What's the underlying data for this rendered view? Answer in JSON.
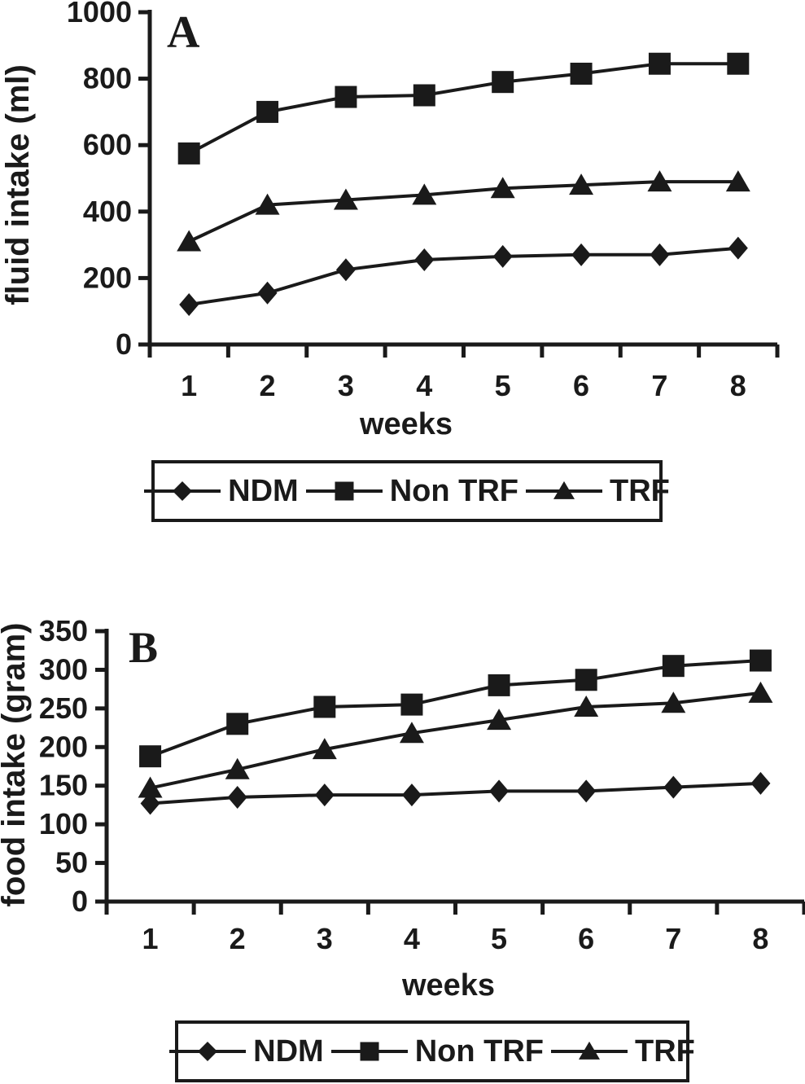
{
  "figure": {
    "background": "#ffffff",
    "ink_color": "#1a1a1a",
    "description_visible_text_only": true
  },
  "legend": {
    "items": [
      {
        "label": "NDM",
        "marker": "diamond"
      },
      {
        "label": "Non TRF",
        "marker": "square"
      },
      {
        "label": "TRF",
        "marker": "triangle"
      }
    ]
  },
  "chart_data": [
    {
      "type": "line",
      "panel_label": "A",
      "title": "",
      "xlabel": "weeks",
      "ylabel": "fluid intake (ml)",
      "categories": [
        "1",
        "2",
        "3",
        "4",
        "5",
        "6",
        "7",
        "8"
      ],
      "ylim": [
        0,
        1000
      ],
      "ytick_step": 200,
      "grid": false,
      "legend_position": "below",
      "series": [
        {
          "name": "NDM",
          "marker": "diamond",
          "values": [
            120,
            155,
            225,
            255,
            265,
            270,
            270,
            290
          ]
        },
        {
          "name": "Non TRF",
          "marker": "square",
          "values": [
            575,
            700,
            745,
            750,
            790,
            815,
            845,
            845
          ]
        },
        {
          "name": "TRF",
          "marker": "triangle",
          "values": [
            310,
            420,
            435,
            450,
            470,
            480,
            490,
            490
          ]
        }
      ]
    },
    {
      "type": "line",
      "panel_label": "B",
      "title": "",
      "xlabel": "weeks",
      "ylabel": "food intake (gram)",
      "categories": [
        "1",
        "2",
        "3",
        "4",
        "5",
        "6",
        "7",
        "8"
      ],
      "ylim": [
        0,
        350
      ],
      "ytick_step": 50,
      "grid": false,
      "legend_position": "below",
      "series": [
        {
          "name": "NDM",
          "marker": "diamond",
          "values": [
            127,
            135,
            138,
            138,
            143,
            143,
            148,
            153
          ]
        },
        {
          "name": "Non TRF",
          "marker": "square",
          "values": [
            188,
            230,
            252,
            255,
            280,
            287,
            305,
            312
          ]
        },
        {
          "name": "TRF",
          "marker": "triangle",
          "values": [
            147,
            171,
            197,
            218,
            235,
            252,
            257,
            270
          ]
        }
      ]
    }
  ]
}
